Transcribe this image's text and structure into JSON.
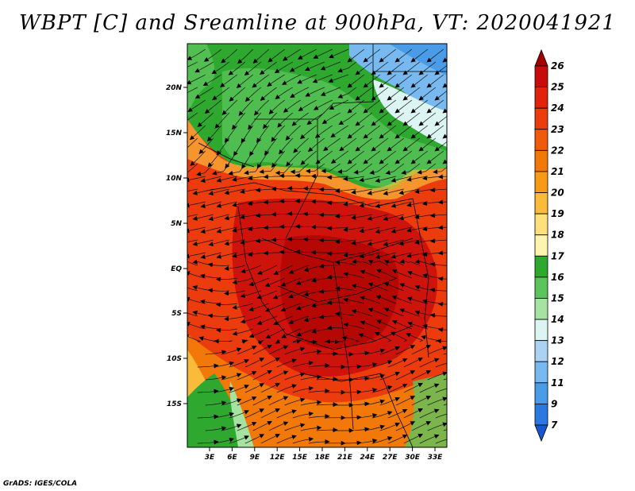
{
  "title": "WBPT [C] and Sreamline at 900hPa, VT: 2020041921",
  "credit": "GrADS: IGES/COLA",
  "map": {
    "lat_ticks": [
      "20N",
      "15N",
      "10N",
      "5N",
      "EQ",
      "5S",
      "10S",
      "15S"
    ],
    "lon_ticks": [
      "3E",
      "6E",
      "9E",
      "12E",
      "15E",
      "18E",
      "21E",
      "24E",
      "27E",
      "30E",
      "33E"
    ]
  },
  "colorbar": {
    "labels": [
      "26",
      "25",
      "24",
      "23",
      "22",
      "21",
      "20",
      "19",
      "18",
      "17",
      "16",
      "15",
      "14",
      "13",
      "12",
      "11",
      "9",
      "7"
    ],
    "colors": [
      "#a50000",
      "#c80c0c",
      "#e1230b",
      "#ec3c0e",
      "#f05a0b",
      "#f2780a",
      "#f79a16",
      "#fbbb3a",
      "#fde07c",
      "#fdf4b0",
      "#2ea82e",
      "#5cc45c",
      "#a6e2a0",
      "#dcf5f2",
      "#aad2f3",
      "#78b9f0",
      "#4a9be8",
      "#2a78e0",
      "#1756d3"
    ]
  }
}
